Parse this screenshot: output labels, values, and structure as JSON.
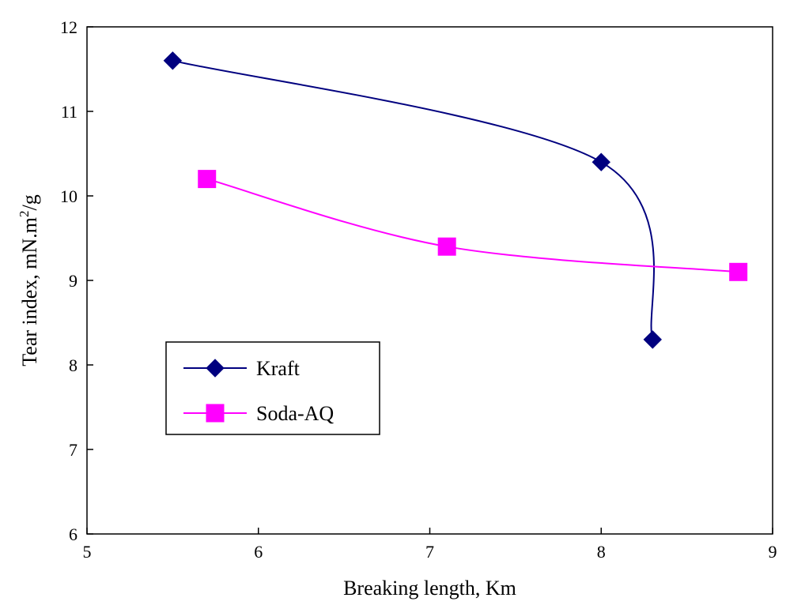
{
  "chart_data": {
    "type": "scatter",
    "title": "",
    "xlabel": "Breaking length, Km",
    "ylabel_main": "Tear index, mN.m",
    "ylabel_sup": "2",
    "ylabel_end": "/g",
    "xlim": [
      5,
      9
    ],
    "ylim": [
      6,
      12
    ],
    "xticks": [
      "5",
      "6",
      "7",
      "8",
      "9"
    ],
    "yticks": [
      "6",
      "7",
      "8",
      "9",
      "10",
      "11",
      "12"
    ],
    "grid": false,
    "legend_position": "middle-left",
    "smooth_lines": true,
    "series": [
      {
        "name": "Kraft",
        "marker": "diamond",
        "color": "#00007f",
        "x": [
          5.5,
          8.0,
          8.3
        ],
        "y": [
          11.6,
          10.4,
          8.3
        ]
      },
      {
        "name": "Soda-AQ",
        "marker": "square",
        "color": "#ff00ff",
        "x": [
          5.7,
          7.1,
          8.8
        ],
        "y": [
          10.2,
          9.4,
          9.1
        ]
      }
    ]
  }
}
